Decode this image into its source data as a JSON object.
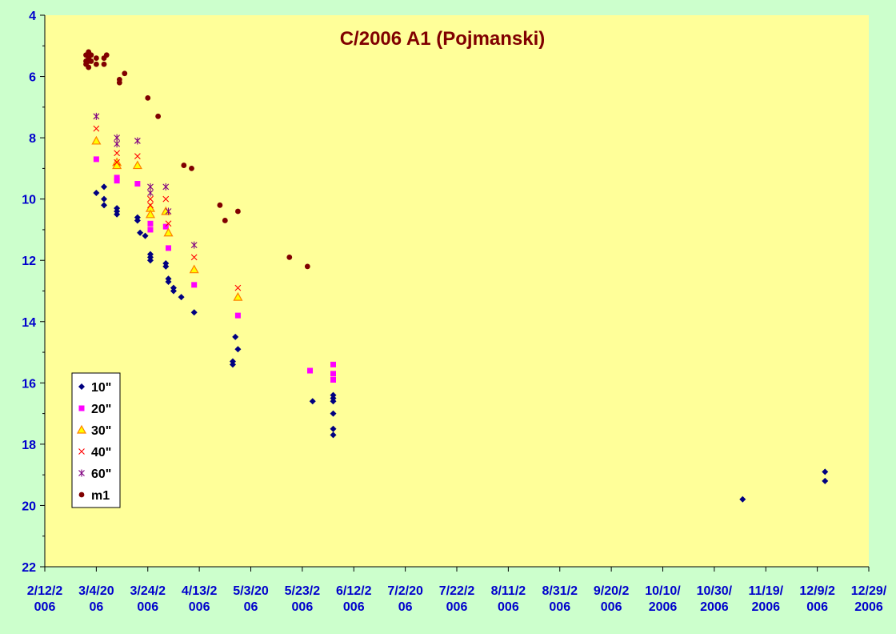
{
  "chart_data": {
    "type": "scatter",
    "title": "C/2006 A1 (Pojmanski)",
    "xlabel": "",
    "ylabel": "",
    "x_axis_type": "date",
    "xlim": [
      "2006-02-12",
      "2006-12-29"
    ],
    "x_ticks": [
      {
        "date": "2006-02-12",
        "label": [
          "2/12/2",
          "006"
        ]
      },
      {
        "date": "2006-03-04",
        "label": [
          "3/4/20",
          "06"
        ]
      },
      {
        "date": "2006-03-24",
        "label": [
          "3/24/2",
          "006"
        ]
      },
      {
        "date": "2006-04-13",
        "label": [
          "4/13/2",
          "006"
        ]
      },
      {
        "date": "2006-05-03",
        "label": [
          "5/3/20",
          "06"
        ]
      },
      {
        "date": "2006-05-23",
        "label": [
          "5/23/2",
          "006"
        ]
      },
      {
        "date": "2006-06-12",
        "label": [
          "6/12/2",
          "006"
        ]
      },
      {
        "date": "2006-07-02",
        "label": [
          "7/2/20",
          "06"
        ]
      },
      {
        "date": "2006-07-22",
        "label": [
          "7/22/2",
          "006"
        ]
      },
      {
        "date": "2006-08-11",
        "label": [
          "8/11/2",
          "006"
        ]
      },
      {
        "date": "2006-08-31",
        "label": [
          "8/31/2",
          "006"
        ]
      },
      {
        "date": "2006-09-20",
        "label": [
          "9/20/2",
          "006"
        ]
      },
      {
        "date": "2006-10-10",
        "label": [
          "10/10/",
          "2006"
        ]
      },
      {
        "date": "2006-10-30",
        "label": [
          "10/30/",
          "2006"
        ]
      },
      {
        "date": "2006-11-19",
        "label": [
          "11/19/",
          "2006"
        ]
      },
      {
        "date": "2006-12-09",
        "label": [
          "12/9/2",
          "006"
        ]
      },
      {
        "date": "2006-12-29",
        "label": [
          "12/29/",
          "2006"
        ]
      }
    ],
    "y_axis": {
      "min": 4,
      "max": 22,
      "reversed": true,
      "ticks": [
        4,
        6,
        8,
        10,
        12,
        14,
        16,
        18,
        20,
        22
      ],
      "minor_step": 1
    },
    "grid": false,
    "legend_position": "bottom-left",
    "colors": {
      "page_background": "#ccffcc",
      "plot_background": "#ffff99",
      "axis": "#000000",
      "tick_labels": "#0000cc",
      "title": "#800000"
    },
    "series": [
      {
        "name": "10\"",
        "marker": "diamond",
        "color": "#000080",
        "points": [
          [
            "2006-03-04",
            9.8
          ],
          [
            "2006-03-07",
            10.0
          ],
          [
            "2006-03-07",
            10.2
          ],
          [
            "2006-03-07",
            9.6
          ],
          [
            "2006-03-12",
            10.3
          ],
          [
            "2006-03-12",
            10.5
          ],
          [
            "2006-03-12",
            10.4
          ],
          [
            "2006-03-20",
            10.6
          ],
          [
            "2006-03-20",
            10.7
          ],
          [
            "2006-03-21",
            11.1
          ],
          [
            "2006-03-23",
            11.2
          ],
          [
            "2006-03-25",
            11.8
          ],
          [
            "2006-03-25",
            11.9
          ],
          [
            "2006-03-25",
            12.0
          ],
          [
            "2006-03-31",
            12.1
          ],
          [
            "2006-03-31",
            12.2
          ],
          [
            "2006-04-01",
            12.6
          ],
          [
            "2006-04-01",
            12.7
          ],
          [
            "2006-04-03",
            12.9
          ],
          [
            "2006-04-03",
            13.0
          ],
          [
            "2006-04-06",
            13.2
          ],
          [
            "2006-04-11",
            13.7
          ],
          [
            "2006-04-26",
            15.3
          ],
          [
            "2006-04-26",
            15.4
          ],
          [
            "2006-04-27",
            14.5
          ],
          [
            "2006-04-28",
            14.9
          ],
          [
            "2006-05-27",
            16.6
          ],
          [
            "2006-06-04",
            16.4
          ],
          [
            "2006-06-04",
            16.5
          ],
          [
            "2006-06-04",
            16.6
          ],
          [
            "2006-06-04",
            17.0
          ],
          [
            "2006-06-04",
            17.5
          ],
          [
            "2006-06-04",
            17.7
          ],
          [
            "2006-11-10",
            19.8
          ],
          [
            "2006-12-12",
            18.9
          ],
          [
            "2006-12-12",
            19.2
          ]
        ]
      },
      {
        "name": "20\"",
        "marker": "square",
        "color": "#ff00ff",
        "points": [
          [
            "2006-03-04",
            8.7
          ],
          [
            "2006-03-12",
            9.3
          ],
          [
            "2006-03-12",
            9.4
          ],
          [
            "2006-03-20",
            9.5
          ],
          [
            "2006-03-25",
            10.8
          ],
          [
            "2006-03-25",
            11.0
          ],
          [
            "2006-03-31",
            10.9
          ],
          [
            "2006-04-01",
            11.6
          ],
          [
            "2006-04-11",
            12.8
          ],
          [
            "2006-04-28",
            13.8
          ],
          [
            "2006-05-26",
            15.6
          ],
          [
            "2006-06-04",
            15.4
          ],
          [
            "2006-06-04",
            15.7
          ],
          [
            "2006-06-04",
            15.9
          ]
        ]
      },
      {
        "name": "30\"",
        "marker": "triangle",
        "color": "#ff8000",
        "points": [
          [
            "2006-03-04",
            8.1
          ],
          [
            "2006-03-12",
            8.8
          ],
          [
            "2006-03-12",
            8.9
          ],
          [
            "2006-03-20",
            8.9
          ],
          [
            "2006-03-25",
            10.3
          ],
          [
            "2006-03-25",
            10.5
          ],
          [
            "2006-03-31",
            10.4
          ],
          [
            "2006-04-01",
            11.1
          ],
          [
            "2006-04-11",
            12.3
          ],
          [
            "2006-04-28",
            13.2
          ]
        ]
      },
      {
        "name": "40\"",
        "marker": "x",
        "color": "#ff0000",
        "points": [
          [
            "2006-03-04",
            7.7
          ],
          [
            "2006-03-12",
            8.5
          ],
          [
            "2006-03-12",
            8.8
          ],
          [
            "2006-03-20",
            8.6
          ],
          [
            "2006-03-25",
            10.0
          ],
          [
            "2006-03-25",
            10.2
          ],
          [
            "2006-03-31",
            10.0
          ],
          [
            "2006-04-01",
            10.8
          ],
          [
            "2006-04-11",
            11.9
          ],
          [
            "2006-04-28",
            12.9
          ]
        ]
      },
      {
        "name": "60\"",
        "marker": "star",
        "color": "#800080",
        "points": [
          [
            "2006-03-04",
            7.3
          ],
          [
            "2006-03-12",
            8.0
          ],
          [
            "2006-03-12",
            8.2
          ],
          [
            "2006-03-20",
            8.1
          ],
          [
            "2006-03-25",
            9.6
          ],
          [
            "2006-03-25",
            9.8
          ],
          [
            "2006-03-31",
            9.6
          ],
          [
            "2006-04-01",
            10.4
          ],
          [
            "2006-04-11",
            11.5
          ]
        ]
      },
      {
        "name": "m1",
        "marker": "circle",
        "color": "#800000",
        "points": [
          [
            "2006-02-28",
            5.5
          ],
          [
            "2006-02-28",
            5.3
          ],
          [
            "2006-02-28",
            5.6
          ],
          [
            "2006-03-01",
            5.2
          ],
          [
            "2006-03-01",
            5.4
          ],
          [
            "2006-03-01",
            5.5
          ],
          [
            "2006-03-01",
            5.7
          ],
          [
            "2006-03-02",
            5.3
          ],
          [
            "2006-03-02",
            5.5
          ],
          [
            "2006-03-04",
            5.4
          ],
          [
            "2006-03-04",
            5.6
          ],
          [
            "2006-03-07",
            5.6
          ],
          [
            "2006-03-07",
            5.4
          ],
          [
            "2006-03-08",
            5.3
          ],
          [
            "2006-03-13",
            6.1
          ],
          [
            "2006-03-13",
            6.2
          ],
          [
            "2006-03-15",
            5.9
          ],
          [
            "2006-03-24",
            6.7
          ],
          [
            "2006-03-28",
            7.3
          ],
          [
            "2006-04-07",
            8.9
          ],
          [
            "2006-04-10",
            9.0
          ],
          [
            "2006-04-21",
            10.2
          ],
          [
            "2006-04-23",
            10.7
          ],
          [
            "2006-04-28",
            10.4
          ],
          [
            "2006-05-18",
            11.9
          ],
          [
            "2006-05-25",
            12.2
          ]
        ]
      }
    ]
  }
}
